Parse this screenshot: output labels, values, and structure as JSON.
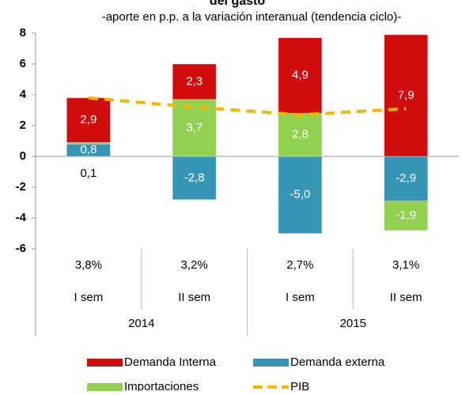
{
  "chart_data": {
    "type": "bar",
    "stacked": true,
    "title": "del gasto",
    "subtitle": "-aporte en p.p. a la variación interanual (tendencia ciclo)-",
    "categories": [
      "I sem",
      "II sem",
      "I sem",
      "II sem"
    ],
    "group_labels": [
      "2014",
      "2015"
    ],
    "series": [
      {
        "name": "Demanda externa",
        "color": "#3596b5",
        "values": [
          0.8,
          -2.8,
          -5.0,
          -2.9
        ],
        "value_labels": [
          "0,8",
          "-2,8",
          "-5,0",
          "-2,9"
        ]
      },
      {
        "name": "Importaciones",
        "color": "#92d050",
        "values": [
          0.1,
          3.7,
          2.8,
          -1.9
        ],
        "value_labels": [
          "0,1",
          "3,7",
          "2,8",
          "-1,9"
        ]
      },
      {
        "name": "Demanda Interna",
        "color": "#d00c0c",
        "values": [
          2.9,
          2.3,
          4.9,
          7.9
        ],
        "value_labels": [
          "2,9",
          "2,3",
          "4,9",
          "7,9"
        ]
      },
      {
        "name": "PIB",
        "type": "line",
        "color": "#f5b800",
        "values": [
          3.8,
          3.2,
          2.7,
          3.1
        ],
        "value_labels": [
          "3,8%",
          "3,2%",
          "2,7%",
          "3,1%"
        ]
      }
    ],
    "legend_order": [
      2,
      0,
      1,
      3
    ],
    "ylim": [
      -6,
      8
    ],
    "yticks": [
      -6,
      -4,
      -2,
      0,
      2,
      4,
      6,
      8
    ]
  }
}
